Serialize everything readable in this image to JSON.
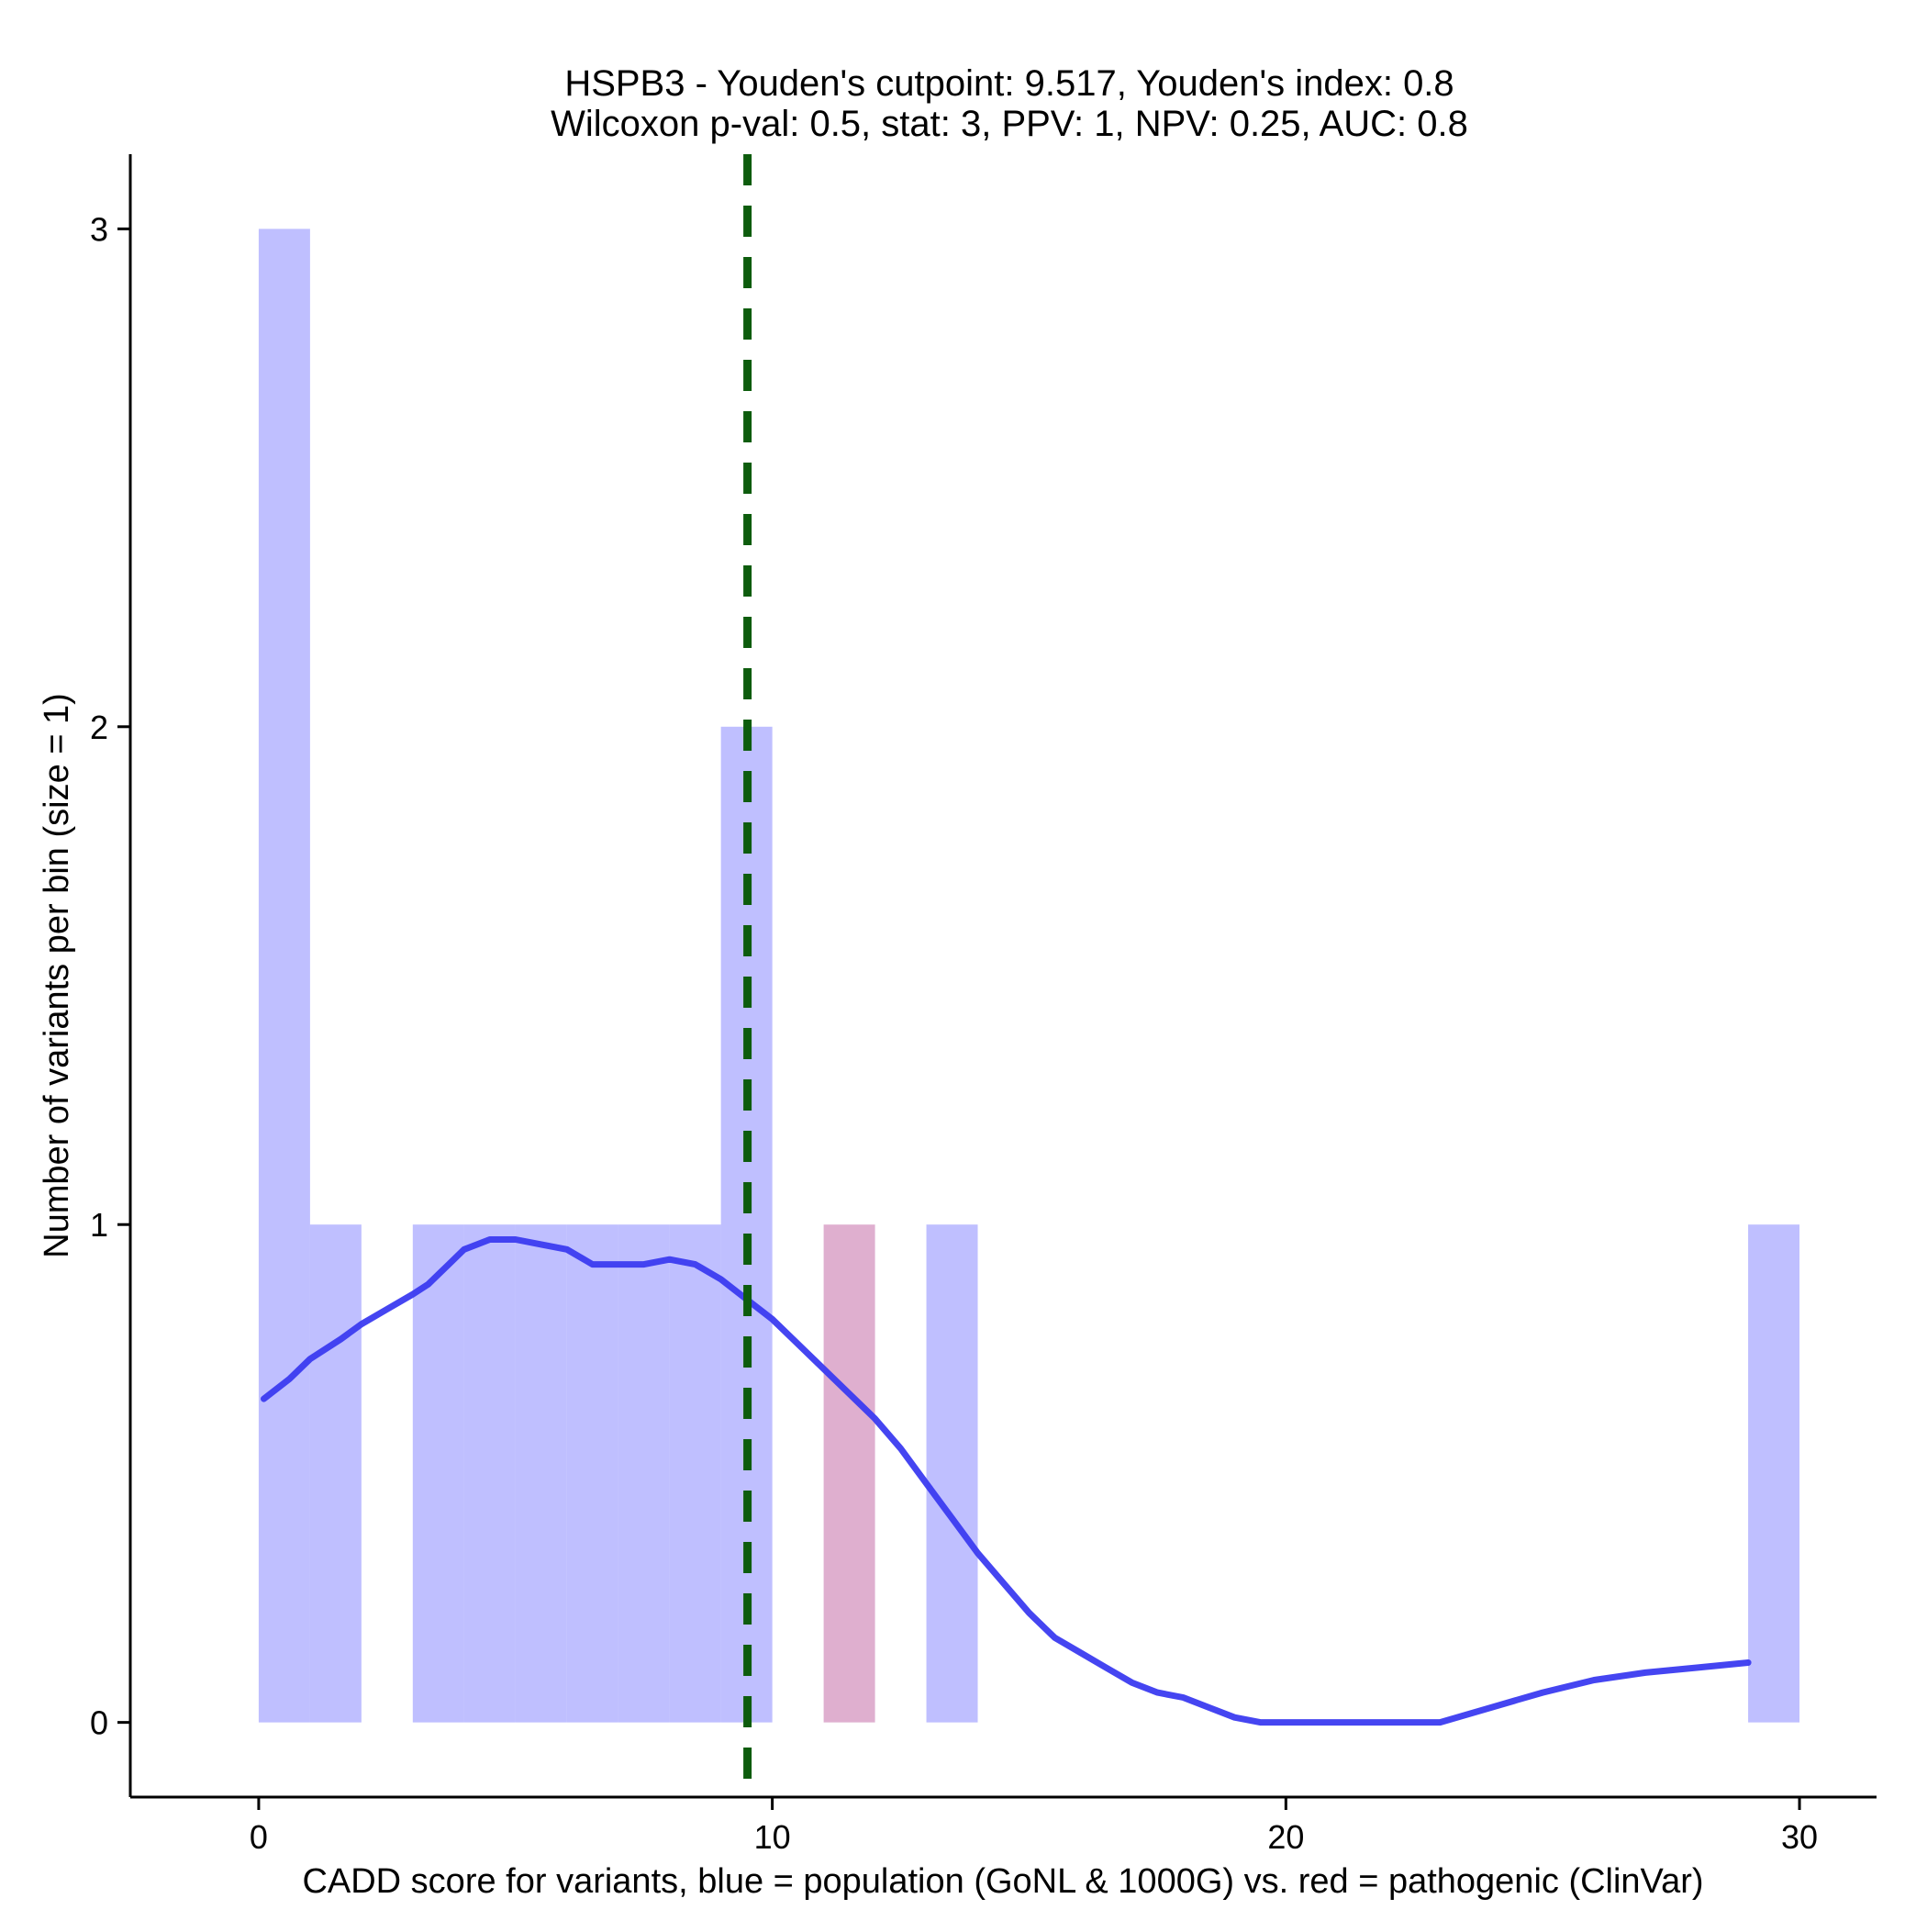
{
  "chart_data": {
    "type": "bar",
    "title": "HSPB3 - Youden's cutpoint: 9.517, Youden's index: 0.8",
    "subtitle": "Wilcoxon p-val: 0.5, stat: 3, PPV: 1, NPV: 0.25, AUC: 0.8",
    "xlabel": "CADD score for variants, blue = population (GoNL & 1000G) vs. red = pathogenic (ClinVar)",
    "ylabel": "Number of variants per bin (size = 1)",
    "xlim": [
      -2.5,
      31.5
    ],
    "ylim": [
      -0.15,
      3.15
    ],
    "x_ticks": [
      0,
      10,
      20,
      30
    ],
    "y_ticks": [
      0,
      1,
      2,
      3
    ],
    "bin_width": 1,
    "grid": false,
    "legend": "none",
    "colors": {
      "population": "#8080ff",
      "pathogenic": "#c0609f",
      "density": "#3b3bf0",
      "cutpoint": "#0d5c0d"
    },
    "series": [
      {
        "name": "population",
        "bins": [
          {
            "x0": 0,
            "x1": 1,
            "count": 3
          },
          {
            "x0": 1,
            "x1": 2,
            "count": 1
          },
          {
            "x0": 3,
            "x1": 4,
            "count": 1
          },
          {
            "x0": 4,
            "x1": 5,
            "count": 1
          },
          {
            "x0": 5,
            "x1": 6,
            "count": 1
          },
          {
            "x0": 6,
            "x1": 7,
            "count": 1
          },
          {
            "x0": 7,
            "x1": 8,
            "count": 1
          },
          {
            "x0": 8,
            "x1": 9,
            "count": 1
          },
          {
            "x0": 9,
            "x1": 10,
            "count": 2
          },
          {
            "x0": 13,
            "x1": 14,
            "count": 1
          },
          {
            "x0": 29,
            "x1": 30,
            "count": 1
          }
        ]
      },
      {
        "name": "pathogenic",
        "bins": [
          {
            "x0": 11,
            "x1": 12,
            "count": 1
          }
        ]
      }
    ],
    "density_curve": {
      "x": [
        0.1,
        0.6,
        1.0,
        1.6,
        2.0,
        2.5,
        3.0,
        3.3,
        3.7,
        4.0,
        4.5,
        5.0,
        5.5,
        6.0,
        6.5,
        7.0,
        7.5,
        8.0,
        8.5,
        9.0,
        9.5,
        10.0,
        10.5,
        11.0,
        11.5,
        12.0,
        12.5,
        13.0,
        13.5,
        14.0,
        14.5,
        15.0,
        15.5,
        16.0,
        16.5,
        17.0,
        17.5,
        18.0,
        18.5,
        19.0,
        19.5,
        20.0,
        21.0,
        22.0,
        23.0,
        23.5,
        24.0,
        24.5,
        25.0,
        26.0,
        27.0,
        28.0,
        29.0
      ],
      "y": [
        0.65,
        0.69,
        0.73,
        0.77,
        0.8,
        0.83,
        0.86,
        0.88,
        0.92,
        0.95,
        0.97,
        0.97,
        0.96,
        0.95,
        0.92,
        0.92,
        0.92,
        0.93,
        0.92,
        0.89,
        0.85,
        0.81,
        0.76,
        0.71,
        0.66,
        0.61,
        0.55,
        0.48,
        0.41,
        0.34,
        0.28,
        0.22,
        0.17,
        0.14,
        0.11,
        0.08,
        0.06,
        0.05,
        0.03,
        0.01,
        0.0,
        0.0,
        0.0,
        0.0,
        0.0,
        0.015,
        0.03,
        0.045,
        0.06,
        0.085,
        0.1,
        0.11,
        0.12
      ]
    },
    "cutpoint": 9.517
  }
}
